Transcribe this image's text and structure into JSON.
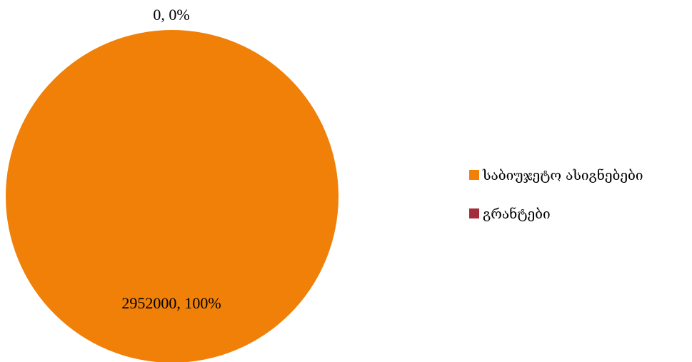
{
  "chart_data": {
    "type": "pie",
    "title": "",
    "categories": [
      "საბიუჯეტო ასიგნებები",
      "გრანტები"
    ],
    "values": [
      2952000,
      0
    ],
    "percentages": [
      "100%",
      "0%"
    ],
    "data_labels": [
      "2952000, 100%",
      "0, 0%"
    ],
    "colors": [
      "#f08008",
      "#a52a3a"
    ],
    "legend": {
      "position": "right",
      "entries": [
        "საბიუჯეტო ასიგნებები",
        "გრანტები"
      ]
    }
  }
}
